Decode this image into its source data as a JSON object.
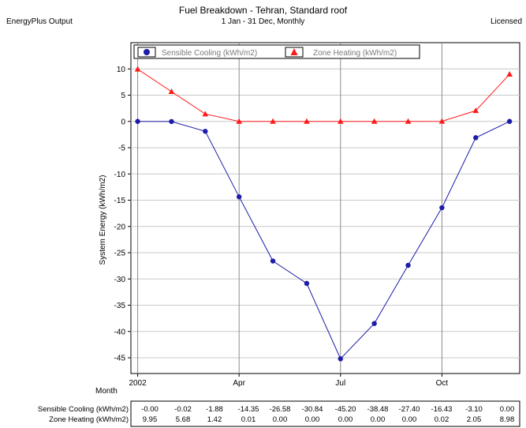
{
  "header": {
    "title": "Fuel Breakdown - Tehran, Standard roof",
    "subtitle": "1 Jan - 31 Dec, Monthly",
    "source": "EnergyPlus Output",
    "licensed": "Licensed"
  },
  "chart_data": {
    "type": "line",
    "ylabel": "System Energy (kWh/m2)",
    "xlabel": "Month",
    "ylim": [
      -48,
      15
    ],
    "yticks": [
      10,
      5,
      0,
      -5,
      -10,
      -15,
      -20,
      -25,
      -30,
      -35,
      -40,
      -45
    ],
    "x": [
      1,
      2,
      3,
      4,
      5,
      6,
      7,
      8,
      9,
      10,
      11,
      12
    ],
    "xtick_labels": [
      {
        "x": 1,
        "label": "2002"
      },
      {
        "x": 4,
        "label": "Apr"
      },
      {
        "x": 7,
        "label": "Jul"
      },
      {
        "x": 10,
        "label": "Oct"
      }
    ],
    "grid": true,
    "legend_position": "top",
    "series": [
      {
        "name": "Sensible Cooling (kWh/m2)",
        "values": [
          -0.0,
          -0.02,
          -1.88,
          -14.35,
          -26.58,
          -30.84,
          -45.2,
          -38.48,
          -27.4,
          -16.43,
          -3.1,
          0.0
        ],
        "table_values": [
          "-0.00",
          "-0.02",
          "-1.88",
          "-14.35",
          "-26.58",
          "-30.84",
          "-45.20",
          "-38.48",
          "-27.40",
          "-16.43",
          "-3.10",
          "0.00"
        ],
        "color": "#1c1ca8",
        "marker": "circle"
      },
      {
        "name": "Zone Heating (kWh/m2)",
        "values": [
          9.95,
          5.68,
          1.42,
          0.01,
          0.0,
          0.0,
          0.0,
          0.0,
          0.0,
          0.02,
          2.05,
          8.98
        ],
        "table_values": [
          "9.95",
          "5.68",
          "1.42",
          "0.01",
          "0.00",
          "0.00",
          "0.00",
          "0.00",
          "0.00",
          "0.02",
          "2.05",
          "8.98"
        ],
        "color": "#ff1a1a",
        "marker": "triangle"
      }
    ]
  }
}
